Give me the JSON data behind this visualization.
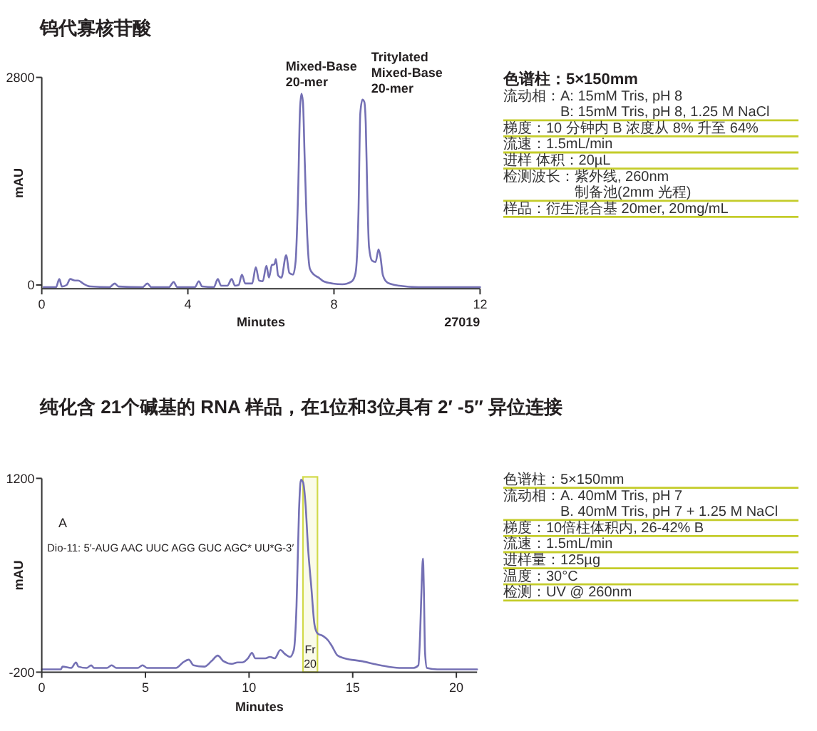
{
  "chart_data": [
    {
      "type": "line",
      "title": "钨代寡核苷酸",
      "xlabel": "Minutes",
      "ylabel": "mAU",
      "xlim": [
        0,
        12
      ],
      "xticks": [
        0,
        4,
        8,
        12
      ],
      "ylim": [
        -50,
        2800
      ],
      "yticks": [
        0,
        2800
      ],
      "color": "#7470b4",
      "x": [
        0.05,
        0.39,
        0.48,
        0.55,
        0.68,
        0.78,
        0.91,
        1.0,
        1.13,
        1.33,
        1.85,
        2.0,
        2.1,
        2.76,
        2.89,
        3.0,
        3.48,
        3.61,
        3.71,
        4.19,
        4.3,
        4.39,
        4.71,
        4.82,
        4.91,
        5.08,
        5.2,
        5.29,
        5.39,
        5.48,
        5.57,
        5.76,
        5.86,
        5.95,
        6.05,
        6.15,
        6.22,
        6.3,
        6.37,
        6.41,
        6.47,
        6.56,
        6.69,
        6.78,
        6.88,
        6.95,
        7.02,
        7.07,
        7.11,
        7.15,
        7.2,
        7.27,
        7.34,
        7.45,
        7.58,
        7.71,
        7.97,
        8.23,
        8.49,
        8.59,
        8.67,
        8.72,
        8.78,
        8.83,
        8.87,
        8.91,
        8.96,
        9.04,
        9.14,
        9.22,
        9.27,
        9.34,
        9.47,
        9.79,
        10.31,
        11.22,
        12.0
      ],
      "values": [
        -30,
        -30,
        80,
        -20,
        0,
        80,
        60,
        60,
        20,
        -20,
        -30,
        20,
        -20,
        -30,
        20,
        -30,
        -30,
        40,
        -30,
        -30,
        50,
        -20,
        -30,
        80,
        -10,
        -10,
        80,
        -10,
        0,
        140,
        20,
        20,
        240,
        60,
        50,
        260,
        100,
        270,
        280,
        350,
        130,
        100,
        400,
        160,
        140,
        320,
        1280,
        2370,
        2580,
        2470,
        1670,
        640,
        220,
        140,
        100,
        50,
        20,
        10,
        50,
        160,
        960,
        2310,
        2500,
        2470,
        2180,
        1280,
        510,
        330,
        310,
        480,
        390,
        130,
        30,
        -10,
        -30,
        -30,
        -30
      ],
      "annotations": [
        {
          "text": "Mixed-Base\n20-mer",
          "x": 7.11,
          "y": 2580
        },
        {
          "text": "Tritylated\nMixed-Base\n20-mer",
          "x": 8.78,
          "y": 2500
        },
        "27019"
      ]
    },
    {
      "type": "other",
      "title": "色谱柱：5×150mm",
      "color": "#c4cc2a",
      "annotations": [
        "流动相：A: 15mM Tris, pH 8\nB: 15mM Tris, pH 8, 1.25 M NaCl",
        "梯度：10 分钟内 B 浓度从 8% 升至 64%",
        "流速：1.5mL/min",
        "进样 体积：20µL",
        "检测波长：紫外线, 260nm\n制备池(2mm 光程)",
        "样品：衍生混合基 20mer, 20mg/mL"
      ]
    },
    {
      "type": "line",
      "title": "纯化含 21个碱基的 RNA 样品，在1位和3位具有 2′ -5″ 异位连接",
      "xlabel": "Minutes",
      "ylabel": "mAU",
      "xlim": [
        0,
        21
      ],
      "xticks": [
        0,
        5,
        10,
        15,
        20
      ],
      "ylim": [
        -200,
        1200
      ],
      "yticks": [
        -200,
        1200
      ],
      "color": "#7470b4",
      "x": [
        0,
        0.92,
        1.0,
        1.42,
        1.65,
        1.77,
        2.16,
        2.39,
        2.52,
        3.14,
        3.37,
        3.6,
        4.63,
        4.86,
        5.09,
        6.47,
        6.81,
        7.09,
        7.32,
        7.84,
        8.19,
        8.49,
        8.76,
        9.17,
        9.45,
        9.68,
        9.95,
        10.14,
        10.3,
        10.55,
        10.78,
        11.01,
        11.24,
        11.51,
        11.74,
        11.97,
        12.16,
        12.29,
        12.41,
        12.5,
        12.61,
        12.73,
        12.84,
        13.0,
        13.16,
        13.3,
        13.58,
        13.81,
        13.99,
        14.27,
        14.61,
        15.41,
        16.33,
        17.25,
        17.94,
        18.17,
        18.26,
        18.33,
        18.39,
        18.43,
        18.49,
        18.58,
        19.08,
        21.0
      ],
      "values": [
        -180,
        -180,
        -160,
        -170,
        -130,
        -160,
        -170,
        -150,
        -170,
        -170,
        -150,
        -170,
        -170,
        -150,
        -170,
        -170,
        -130,
        -110,
        -150,
        -160,
        -120,
        -80,
        -120,
        -140,
        -130,
        -130,
        -100,
        -60,
        -100,
        -100,
        -100,
        -90,
        -100,
        -40,
        -70,
        -90,
        -40,
        280,
        970,
        1190,
        1170,
        1000,
        710,
        420,
        140,
        80,
        60,
        30,
        -10,
        -80,
        -100,
        -120,
        -150,
        -170,
        -170,
        -150,
        110,
        450,
        620,
        420,
        -60,
        -170,
        -180,
        -180
      ],
      "bands": [
        {
          "axis": "x",
          "from": 12.6,
          "to": 13.3,
          "label": "Fr 20",
          "color": "#d2da4a"
        }
      ],
      "annotations": [
        "A",
        "Dio-11: 5′-AUG AAC UUC AGG GUC AGC* UU*G-3′"
      ]
    },
    {
      "type": "other",
      "color": "#c4cc2a",
      "annotations": [
        "色谱柱：5×150mm",
        "流动相：A. 40mM Tris, pH 7\nB. 40mM Tris, pH 7 + 1.25 M NaCl",
        "梯度：10倍柱体积内, 26-42% B",
        "流速：1.5mL/min",
        "进样量：125µg",
        "温度：30°C",
        "检测：UV @ 260nm"
      ]
    }
  ]
}
